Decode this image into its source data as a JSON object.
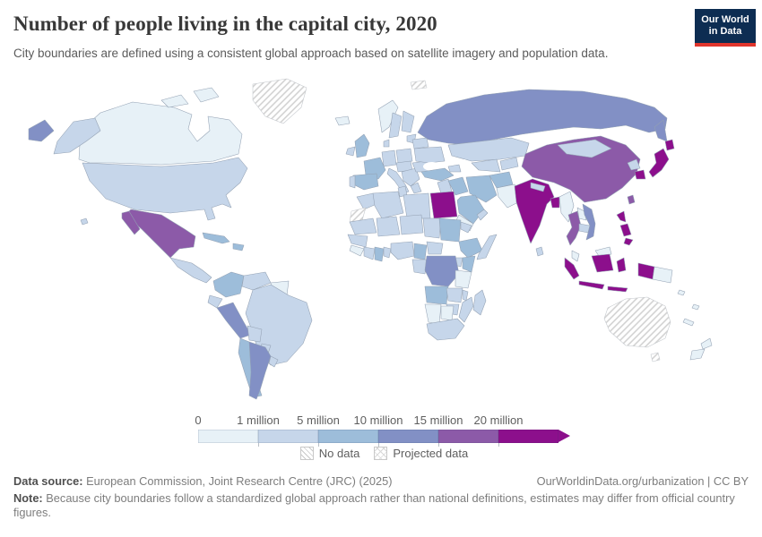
{
  "header": {
    "logo_line1": "Our World",
    "logo_line2": "in Data"
  },
  "legend": {
    "no_data_label": "No data",
    "projected_label": "Projected data"
  },
  "footer": {
    "source_label": "Data source:",
    "source_text": "European Commission, Joint Research Centre (JRC) (2025)",
    "link_text": "OurWorldinData.org/urbanization | CC BY",
    "note_label": "Note:",
    "note_text": "Because city boundaries follow a standardized global approach rather than national definitions, estimates may differ from official country figures."
  },
  "chart_data": {
    "type": "choropleth",
    "title": "Number of people living in the capital city, 2020",
    "subtitle": "City boundaries are defined using a consistent global approach based on satellite imagery and population data.",
    "year": 2020,
    "unit": "people in capital city",
    "bin_edges_millions": [
      0,
      1,
      5,
      10,
      15,
      20
    ],
    "bins": [
      {
        "label": "0",
        "range": "0–1 million",
        "color": "#e7f1f7"
      },
      {
        "label": "1 million",
        "range": "1–5 million",
        "color": "#c6d6ea"
      },
      {
        "label": "5 million",
        "range": "5–10 million",
        "color": "#9dbdda"
      },
      {
        "label": "10 million",
        "range": "10–15 million",
        "color": "#8290c5"
      },
      {
        "label": "15 million",
        "range": "15–20 million",
        "color": "#8c5aa8"
      },
      {
        "label": "20 million",
        "range": "20+ million",
        "color": "#8c0f8c"
      }
    ],
    "no_data_pattern": "diagonal-hatch",
    "projected_pattern": "cross-dot-hatch",
    "legend_position": "bottom",
    "country_bands": {
      "canada": 0,
      "usa": 1,
      "greenland": -1,
      "mexico": 4,
      "central-america": 1,
      "cuba": 2,
      "hispaniola": 2,
      "colombia": 2,
      "venezuela": 1,
      "guyana-suriname": 0,
      "ecuador": 1,
      "peru": 3,
      "brazil": 1,
      "bolivia": 1,
      "paraguay": 1,
      "chile": 2,
      "argentina": 3,
      "uruguay": 1,
      "iceland": 0,
      "norway": 0,
      "sweden": 1,
      "finland": 1,
      "baltics": 1,
      "uk": 2,
      "ireland": 1,
      "denmark": 1,
      "germany": 1,
      "france": 2,
      "spain": 2,
      "portugal": 1,
      "italy": 1,
      "poland": 1,
      "central-europe": 1,
      "balkans": 1,
      "greece": 1,
      "romania": 1,
      "ukraine": 1,
      "belarus": 1,
      "russia": 3,
      "turkey": 2,
      "caucasus": 1,
      "levant": 1,
      "iraq": 2,
      "saudi-arabia": 2,
      "yemen": 0,
      "oman": 1,
      "iran": 2,
      "central-asia-west": 1,
      "kazakhstan": 1,
      "kyrgyzstan-tajikistan": 1,
      "afghanistan": 2,
      "pakistan": 0,
      "india": 5,
      "nepal": 1,
      "sri-lanka": 1,
      "bangladesh": 5,
      "myanmar": 0,
      "thailand": 4,
      "laos": 0,
      "cambodia": 1,
      "vietnam": 3,
      "malaysia": 0,
      "china": 4,
      "mongolia": 1,
      "north-korea": 1,
      "south-korea": 5,
      "japan": 5,
      "taiwan": 4,
      "philippines": 5,
      "indonesia": 5,
      "papua-new-guinea": 0,
      "australia": -1,
      "new-zealand": 0,
      "pacific-islands": 0,
      "morocco": 1,
      "western-sahara": -1,
      "algeria": 1,
      "tunisia": 1,
      "libya": 1,
      "egypt": 5,
      "mauritania": 1,
      "mali": 1,
      "niger": 1,
      "chad": 1,
      "sudan": 2,
      "eritrea-djibouti": 1,
      "senegal-guinea": 1,
      "sierra-leone-liberia": 0,
      "ivory-coast": 1,
      "ghana": 2,
      "togo-benin": 1,
      "nigeria": 1,
      "cameroon": 2,
      "central-african-republic": 1,
      "ethiopia": 2,
      "somalia": 1,
      "kenya": 2,
      "uganda": 1,
      "gabon-congo": 1,
      "drc": 3,
      "tanzania": 0,
      "angola": 2,
      "zambia": 1,
      "malawi": 1,
      "mozambique": 1,
      "zimbabwe": 1,
      "namibia": 0,
      "botswana": 0,
      "south-africa": 1,
      "madagascar": 1,
      "svalbard": -1
    },
    "no_data": [
      "greenland",
      "australia",
      "western-sahara",
      "svalbard"
    ]
  }
}
